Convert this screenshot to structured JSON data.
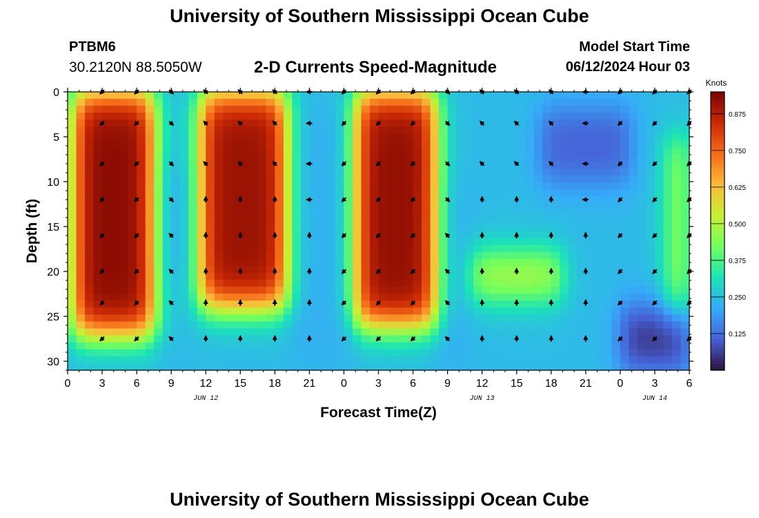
{
  "header": {
    "title": "University of Southern Mississippi Ocean Cube",
    "station": "PTBM6",
    "coords": "30.2120N  88.5050W",
    "subtitle": "2-D Currents Speed-Magnitude",
    "model_start_label": "Model Start Time",
    "model_start_value": "06/12/2024 Hour 03",
    "footer_title": "University of Southern Mississippi Ocean Cube"
  },
  "chart_data": {
    "type": "heatmap",
    "title": "2-D Currents Speed-Magnitude",
    "xlabel": "Forecast Time(Z)",
    "ylabel": "Depth (ft)",
    "x_range_hours": [
      0,
      54
    ],
    "y_range_ft": [
      0,
      31
    ],
    "x_ticks": [
      {
        "h": 0,
        "label": "0"
      },
      {
        "h": 3,
        "label": "3"
      },
      {
        "h": 6,
        "label": "6"
      },
      {
        "h": 9,
        "label": "9"
      },
      {
        "h": 12,
        "label": "12"
      },
      {
        "h": 15,
        "label": "15"
      },
      {
        "h": 18,
        "label": "18"
      },
      {
        "h": 21,
        "label": "21"
      },
      {
        "h": 24,
        "label": "0"
      },
      {
        "h": 27,
        "label": "3"
      },
      {
        "h": 30,
        "label": "6"
      },
      {
        "h": 33,
        "label": "9"
      },
      {
        "h": 36,
        "label": "12"
      },
      {
        "h": 39,
        "label": "15"
      },
      {
        "h": 42,
        "label": "18"
      },
      {
        "h": 45,
        "label": "21"
      },
      {
        "h": 48,
        "label": "0"
      },
      {
        "h": 51,
        "label": "3"
      },
      {
        "h": 54,
        "label": "6"
      }
    ],
    "y_ticks": [
      0,
      5,
      10,
      15,
      20,
      25,
      30
    ],
    "date_labels": [
      {
        "h": 12,
        "label": "JUN 12"
      },
      {
        "h": 36,
        "label": "JUN 13"
      },
      {
        "h": 51,
        "label": "JUN 14"
      }
    ],
    "colorbar": {
      "label": "Knots",
      "min": 0.0,
      "max": 0.95,
      "ticks": [
        0.125,
        0.25,
        0.375,
        0.5,
        0.625,
        0.75,
        0.875
      ],
      "tick_labels": [
        "0.125",
        "0.250",
        "0.375",
        "0.500",
        "0.625",
        "0.750",
        "0.875"
      ],
      "colormap": [
        "#30123b",
        "#4662d7",
        "#36aaf9",
        "#1ae4b6",
        "#72fe5e",
        "#c8ef34",
        "#faba39",
        "#f66b19",
        "#ca2a04",
        "#7a0403"
      ]
    },
    "speed_features_knots": [
      {
        "t0": 0.5,
        "t1": 7.5,
        "d0": 0,
        "d1": 27,
        "peak": 0.93
      },
      {
        "t0": 11.5,
        "t1": 19,
        "d0": 0,
        "d1": 24,
        "peak": 0.91
      },
      {
        "t0": 25,
        "t1": 32,
        "d0": 0,
        "d1": 26,
        "peak": 0.92
      },
      {
        "t0": 7.5,
        "t1": 10.5,
        "d0": 8,
        "d1": 21,
        "peak": 0.2
      },
      {
        "t0": 19.5,
        "t1": 25,
        "d0": 2,
        "d1": 30,
        "peak": 0.22
      },
      {
        "t0": 31.5,
        "t1": 35,
        "d0": 10,
        "d1": 31,
        "peak": 0.22
      },
      {
        "t0": 35,
        "t1": 43,
        "d0": 18,
        "d1": 23,
        "peak": 0.52
      },
      {
        "t0": 41,
        "t1": 49,
        "d0": 2,
        "d1": 10,
        "peak": 0.1
      },
      {
        "t0": 48,
        "t1": 54,
        "d0": 24,
        "d1": 31,
        "peak": 0.04
      },
      {
        "t0": 52,
        "t1": 54,
        "d0": 5,
        "d1": 25,
        "peak": 0.48
      }
    ],
    "vector_times_hours": [
      3,
      6,
      9,
      12,
      15,
      18,
      21,
      24,
      27,
      30,
      33,
      36,
      39,
      42,
      45,
      48,
      51,
      54
    ],
    "vector_depths_ft": [
      0,
      3.5,
      8,
      12,
      16,
      20,
      23.5,
      27.5
    ]
  }
}
